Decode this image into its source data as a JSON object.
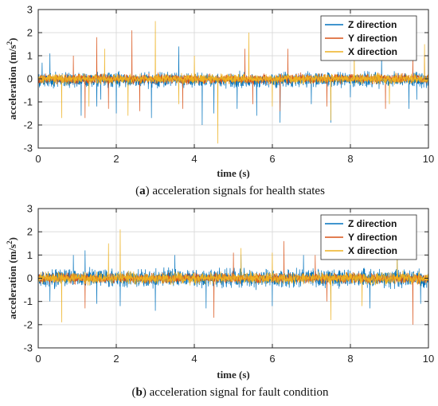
{
  "chart_data": [
    {
      "type": "line",
      "xlabel": "time (s)",
      "ylabel": "acceleration (m/s²)",
      "ylabel_main": "acceleration (m/s",
      "ylabel_sup": "2",
      "ylabel_close": ")",
      "xlim": [
        0,
        10
      ],
      "ylim": [
        -3,
        3
      ],
      "xticks": [
        "0",
        "2",
        "4",
        "6",
        "8",
        "10"
      ],
      "yticks": [
        "-3",
        "-2",
        "-1",
        "0",
        "1",
        "2",
        "3"
      ],
      "grid": true,
      "legend": "top-right",
      "caption_letter": "(a)",
      "caption_text": "acceleration signals for health states",
      "series": [
        {
          "name": "Z direction",
          "color": "#0072BD",
          "noise_amp": 0.45,
          "offset": -0.05,
          "peaks": [
            [
              0.1,
              0.7
            ],
            [
              0.3,
              1.1
            ],
            [
              1.1,
              -1.6
            ],
            [
              1.5,
              -1.2
            ],
            [
              1.6,
              -0.9
            ],
            [
              2.0,
              -1.5
            ],
            [
              2.9,
              -1.7
            ],
            [
              3.6,
              1.4
            ],
            [
              4.2,
              -2.0
            ],
            [
              4.5,
              -1.5
            ],
            [
              5.1,
              -1.3
            ],
            [
              5.6,
              -1.6
            ],
            [
              6.2,
              -1.9
            ],
            [
              7.0,
              -1.1
            ],
            [
              7.5,
              -1.9
            ],
            [
              8.0,
              -0.8
            ],
            [
              8.8,
              1.0
            ],
            [
              9.5,
              -1.3
            ],
            [
              9.7,
              -0.9
            ]
          ]
        },
        {
          "name": "Y direction",
          "color": "#D95319",
          "noise_amp": 0.3,
          "offset": 0.0,
          "peaks": [
            [
              0.9,
              1.0
            ],
            [
              1.2,
              -1.7
            ],
            [
              1.5,
              1.8
            ],
            [
              1.8,
              -1.3
            ],
            [
              2.4,
              2.1
            ],
            [
              2.6,
              -1.4
            ],
            [
              3.7,
              -1.3
            ],
            [
              5.3,
              1.3
            ],
            [
              5.5,
              -1.1
            ],
            [
              6.2,
              -1.4
            ],
            [
              6.4,
              1.3
            ],
            [
              7.4,
              -1.2
            ],
            [
              8.9,
              -1.3
            ],
            [
              9.6,
              1.0
            ],
            [
              9.9,
              1.0
            ]
          ]
        },
        {
          "name": "X direction",
          "color": "#EDB120",
          "noise_amp": 0.3,
          "offset": 0.0,
          "peaks": [
            [
              0.6,
              -1.7
            ],
            [
              1.3,
              -1.2
            ],
            [
              1.7,
              1.3
            ],
            [
              2.3,
              -1.6
            ],
            [
              3.0,
              2.5
            ],
            [
              3.6,
              -1.1
            ],
            [
              4.0,
              1.0
            ],
            [
              4.6,
              -2.8
            ],
            [
              5.4,
              2.0
            ],
            [
              6.0,
              -1.2
            ],
            [
              7.5,
              -1.8
            ],
            [
              8.1,
              1.3
            ],
            [
              9.0,
              -1.1
            ],
            [
              9.9,
              1.5
            ]
          ]
        }
      ]
    },
    {
      "type": "line",
      "xlabel": "time (s)",
      "ylabel": "acceleration (m/s²)",
      "ylabel_main": "acceleration (m/s",
      "ylabel_sup": "2",
      "ylabel_close": ")",
      "xlim": [
        0,
        10
      ],
      "ylim": [
        -3,
        3
      ],
      "xticks": [
        "0",
        "2",
        "4",
        "6",
        "8",
        "10"
      ],
      "yticks": [
        "-3",
        "-2",
        "-1",
        "0",
        "1",
        "2",
        "3"
      ],
      "grid": true,
      "legend": "top-right",
      "caption_letter": "(b)",
      "caption_text": "acceleration signal for fault condition",
      "series": [
        {
          "name": "Z direction",
          "color": "#0072BD",
          "noise_amp": 0.55,
          "offset": 0.0,
          "peaks": [
            [
              0.3,
              -1.0
            ],
            [
              0.9,
              1.0
            ],
            [
              1.2,
              1.2
            ],
            [
              1.5,
              -1.1
            ],
            [
              2.1,
              -1.2
            ],
            [
              3.0,
              -1.4
            ],
            [
              3.5,
              1.0
            ],
            [
              4.3,
              -1.3
            ],
            [
              5.2,
              1.0
            ],
            [
              6.0,
              -1.2
            ],
            [
              6.8,
              1.0
            ],
            [
              7.5,
              -1.0
            ],
            [
              8.5,
              -1.3
            ],
            [
              9.2,
              1.0
            ],
            [
              9.8,
              -1.1
            ]
          ]
        },
        {
          "name": "Y direction",
          "color": "#D95319",
          "noise_amp": 0.3,
          "offset": 0.0,
          "peaks": [
            [
              1.2,
              -1.3
            ],
            [
              4.5,
              -1.7
            ],
            [
              5.0,
              1.1
            ],
            [
              6.3,
              1.6
            ],
            [
              7.1,
              1.0
            ],
            [
              7.4,
              -1.0
            ],
            [
              9.6,
              -2.0
            ]
          ]
        },
        {
          "name": "X direction",
          "color": "#EDB120",
          "noise_amp": 0.35,
          "offset": 0.0,
          "peaks": [
            [
              0.6,
              -1.9
            ],
            [
              1.8,
              1.5
            ],
            [
              2.1,
              2.1
            ],
            [
              5.2,
              1.3
            ],
            [
              6.0,
              1.1
            ],
            [
              7.5,
              -1.8
            ],
            [
              8.3,
              -1.2
            ],
            [
              9.2,
              1.0
            ]
          ]
        }
      ]
    }
  ]
}
